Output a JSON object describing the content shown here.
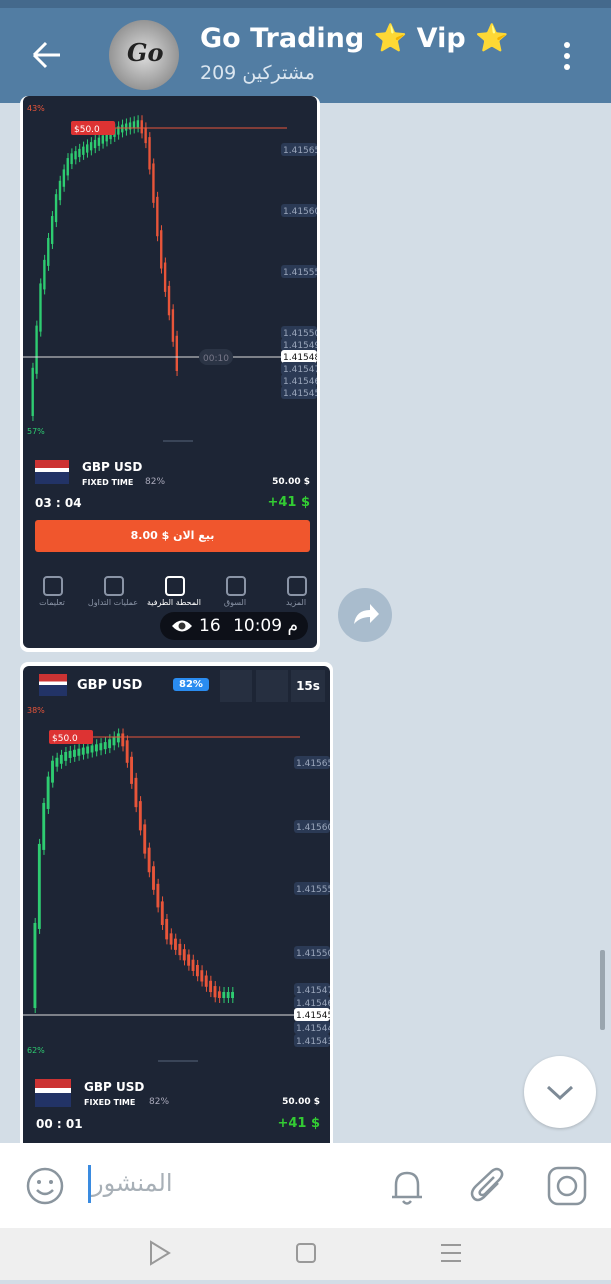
{
  "header": {
    "title": "Go Trading ⭐ Vip ⭐",
    "subscribers": "209 مشتركين"
  },
  "messages": [
    {
      "chart": {
        "top_pct": "43%",
        "bottom_pct": "57%",
        "price_tag": "$50.0",
        "timer": "00:10",
        "price_labels": [
          "1.41565",
          "1.41560",
          "1.41555",
          "1.41550",
          "1.41549",
          "1.41548",
          "1.41547",
          "1.41546",
          "1.41545"
        ],
        "current_index": 5
      },
      "panel": {
        "pair": "GBP USD",
        "mode": "FIXED TIME",
        "payout": "82%",
        "amount": "50.00 $",
        "countdown": "03 : 04",
        "profit": "+41 $",
        "button": "8.00 $ بيع الان"
      },
      "nav": [
        "تعليمات",
        "عمليات التداول",
        "المحطة الطرفية",
        "السوق",
        "المزيد"
      ],
      "views": "16",
      "time": "10:09 م"
    },
    {
      "toolbar": {
        "pair": "GBP USD",
        "payout": "82%",
        "interval": "15s"
      },
      "chart": {
        "top_pct": "38%",
        "bottom_pct": "62%",
        "price_tag": "$50.0",
        "price_labels": [
          "1.41565",
          "1.41560",
          "1.41555",
          "1.41550",
          "1.41547",
          "1.41546",
          "1.41545",
          "1.41544",
          "1.41543"
        ],
        "current_index": 6
      },
      "panel": {
        "pair": "GBP USD",
        "mode": "FIXED TIME",
        "payout": "82%",
        "amount": "50.00 $",
        "countdown": "00 : 01",
        "profit": "+41 $"
      }
    }
  ],
  "input_placeholder": "المنشور"
}
